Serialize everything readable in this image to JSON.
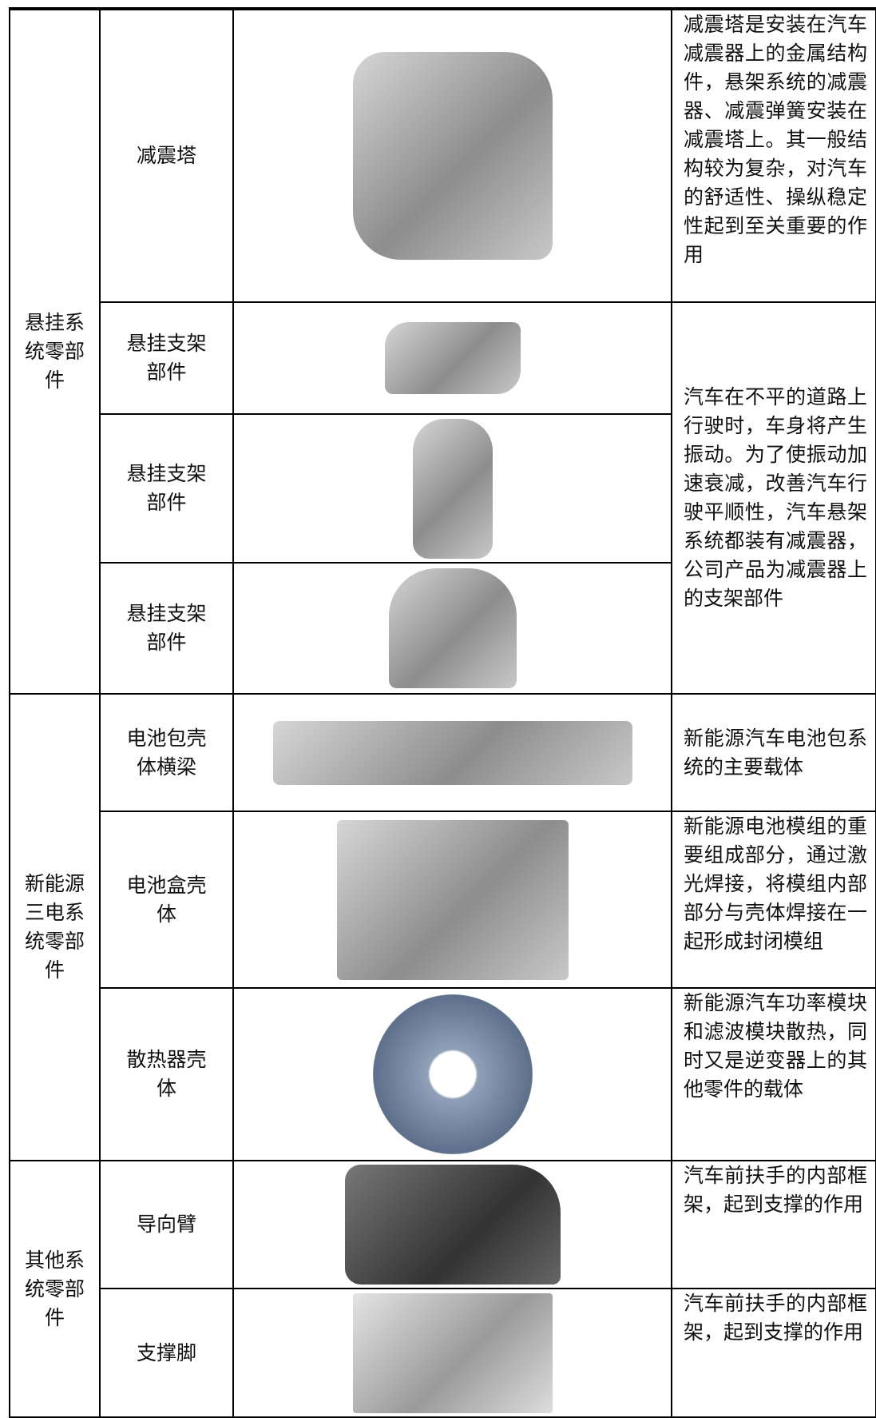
{
  "table": {
    "groups": [
      {
        "name": "悬挂系统零部件",
        "items": [
          {
            "part": "减震塔",
            "description": "减震塔是安装在汽车减震器上的金属结构件，悬架系统的减震器、减震弹簧安装在减震塔上。其一般结构较为复杂，对汽车的舒适性、操纵稳定性起到至关重要的作用"
          },
          {
            "part": "悬挂支架部件",
            "description": "汽车在不平的道路上行驶时，车身将产生振动。为了使振动加速衰减，改善汽车行驶平顺性，汽车悬架系统都装有减震器，公司产品为减震器上的支架部件"
          },
          {
            "part": "悬挂支架部件"
          },
          {
            "part": "悬挂支架部件"
          }
        ]
      },
      {
        "name": "新能源三电系统零部件",
        "items": [
          {
            "part": "电池包壳体横梁",
            "description": "新能源汽车电池包系统的主要载体"
          },
          {
            "part": "电池盒壳体",
            "description": "新能源电池模组的重要组成部分，通过激光焊接，将模组内部部分与壳体焊接在一起形成封闭模组"
          },
          {
            "part": "散热器壳体",
            "description": "新能源汽车功率模块和滤波模块散热，同时又是逆变器上的其他零件的载体"
          }
        ]
      },
      {
        "name": "其他系统零部件",
        "items": [
          {
            "part": "导向臂",
            "description": "汽车前扶手的内部框架，起到支撑的作用"
          },
          {
            "part": "支撑脚",
            "description": "汽车前扶手的内部框架，起到支撑的作用"
          }
        ]
      }
    ]
  }
}
